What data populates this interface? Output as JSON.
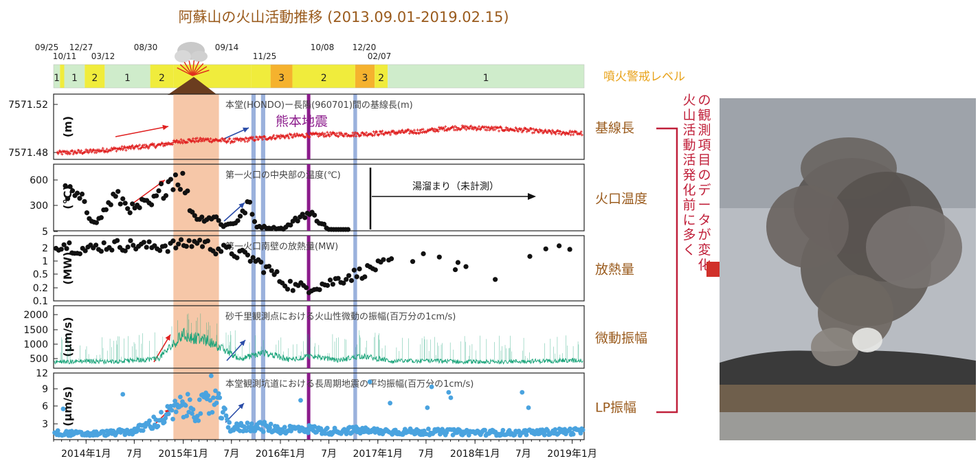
{
  "title": "阿蘇山の火山活動推移 (2013.09.01-2019.02.15)",
  "colors": {
    "title": "#9a5b1d",
    "label_brown": "#9a5b1d",
    "alert_label": "#e8a21a",
    "baseline": "#e02020",
    "tremor": "#1aa47a",
    "lp": "#4aa3df",
    "kumamoto": "#8b1a8b",
    "highlight_orange": "#f6c4a3",
    "highlight_blue": "#8fa8d8",
    "arrow_red": "#e02020",
    "arrow_blue": "#2a4ca8",
    "right_text": "#c0203a",
    "level1": "#cfeccb",
    "level2": "#f0ec3c",
    "level3": "#f5b22e"
  },
  "alert": {
    "label": "噴火警戒レベル",
    "dates": [
      "09/25",
      "10/11",
      "12/27",
      "03/12",
      "08/30",
      "09/14",
      "11/25",
      "10/08",
      "12/20",
      "02/07"
    ],
    "segments": [
      {
        "level": "1",
        "start": "2013-09-01",
        "end": "2013-09-25"
      },
      {
        "level": "",
        "start": "2013-09-25",
        "end": "2013-10-11"
      },
      {
        "level": "1",
        "start": "2013-10-11",
        "end": "2013-12-27"
      },
      {
        "level": "2",
        "start": "2013-12-27",
        "end": "2014-03-12"
      },
      {
        "level": "1",
        "start": "2014-03-12",
        "end": "2014-08-30"
      },
      {
        "level": "2",
        "start": "2014-08-30",
        "end": "2014-11-25"
      },
      {
        "level": "",
        "start": "2014-11-25",
        "end": "2015-09-14"
      },
      {
        "level": "",
        "start": "2015-09-14",
        "end": "2015-11-25"
      },
      {
        "level": "3",
        "start": "2015-11-25",
        "end": "2016-02-15"
      },
      {
        "level": "2",
        "start": "2016-02-15",
        "end": "2016-10-08"
      },
      {
        "level": "3",
        "start": "2016-10-08",
        "end": "2016-12-20"
      },
      {
        "level": "2",
        "start": "2016-12-20",
        "end": "2017-02-07"
      },
      {
        "level": "1",
        "start": "2017-02-07",
        "end": "2019-02-15"
      }
    ]
  },
  "panels": [
    {
      "id": "baseline",
      "name": "基線長",
      "ylabel": "(m)",
      "ticks": [
        "7571.52",
        "7571.48"
      ],
      "title": "本堂(HONDO)ー長陽(960701)間の基線長(m)"
    },
    {
      "id": "temp",
      "name": "火口温度",
      "ylabel": "(°C)",
      "ticks": [
        "600",
        "300",
        "5"
      ],
      "title": "第一火口の中央部の温度(℃)"
    },
    {
      "id": "heat",
      "name": "放熱量",
      "ylabel": "(MW)",
      "ticks": [
        "2",
        "1",
        "0.5",
        "0.2",
        "0.1"
      ],
      "title": "第一火口南壁の放熱量(MW)"
    },
    {
      "id": "tremor",
      "name": "微動振幅",
      "ylabel": "(μm/s)",
      "ticks": [
        "2000",
        "1500",
        "1000",
        "500"
      ],
      "title": "砂千里観測点における火山性微動の振幅(百万分の1cm/s)"
    },
    {
      "id": "lp",
      "name": "LP振幅",
      "ylabel": "(μm/s)",
      "ticks": [
        "12",
        "9",
        "6",
        "3"
      ],
      "title": "本堂観測坑道における長周期地震の平均振幅(百万分の1cm/s)"
    }
  ],
  "kumamoto_label": "熊本地震",
  "yudamari_label": "湯溜まり（未計測）",
  "x_ticks": [
    "2014年1月",
    "7月",
    "2015年1月",
    "7月",
    "2016年1月",
    "7月",
    "2017年1月",
    "7月",
    "2018年1月",
    "7月",
    "2019年1月"
  ],
  "right_text": "火山活動活発化前に多くの観測項目のデータが変化",
  "chart_data": {
    "type": "scatter",
    "title": "阿蘇山の火山活動推移 (2013.09.01-2019.02.15)",
    "x_range": [
      "2013-09-01",
      "2019-02-15"
    ],
    "events": [
      {
        "label": "熊本地震",
        "date": "2016-04-16"
      }
    ],
    "highlight_periods": [
      {
        "start": "2014-11-25",
        "end": "2015-05-15",
        "kind": "eruption"
      },
      {
        "start": "2015-09-14",
        "end": "2015-09-30"
      },
      {
        "start": "2015-10-20",
        "end": "2015-11-05"
      },
      {
        "start": "2016-10-01",
        "end": "2016-10-15"
      }
    ],
    "series": [
      {
        "name": "本堂(HONDO)ー長陽(960701)間の基線長(m)",
        "ylim": [
          7571.47,
          7571.53
        ],
        "points": [
          [
            "2013-10-01",
            7571.476
          ],
          [
            "2014-01-01",
            7571.477
          ],
          [
            "2014-04-01",
            7571.479
          ],
          [
            "2014-07-01",
            7571.481
          ],
          [
            "2014-10-01",
            7571.483
          ],
          [
            "2015-01-01",
            7571.487
          ],
          [
            "2015-04-01",
            7571.488
          ],
          [
            "2015-07-01",
            7571.487
          ],
          [
            "2015-10-01",
            7571.489
          ],
          [
            "2016-01-01",
            7571.491
          ],
          [
            "2016-04-01",
            7571.492
          ],
          [
            "2016-07-01",
            7571.493
          ],
          [
            "2016-10-01",
            7571.493
          ],
          [
            "2017-01-01",
            7571.494
          ],
          [
            "2017-04-01",
            7571.495
          ],
          [
            "2017-07-01",
            7571.496
          ],
          [
            "2017-10-01",
            7571.499
          ],
          [
            "2018-01-01",
            7571.499
          ],
          [
            "2018-04-01",
            7571.498
          ],
          [
            "2018-07-01",
            7571.497
          ],
          [
            "2018-10-01",
            7571.495
          ],
          [
            "2019-02-01",
            7571.494
          ]
        ]
      },
      {
        "name": "第一火口の中央部の温度(℃)",
        "ylim": [
          5,
          750
        ],
        "points": [
          [
            "2013-11-01",
            420
          ],
          [
            "2013-12-15",
            350
          ],
          [
            "2014-01-15",
            150
          ],
          [
            "2014-02-15",
            110
          ],
          [
            "2014-03-15",
            250
          ],
          [
            "2014-04-15",
            380
          ],
          [
            "2014-05-15",
            350
          ],
          [
            "2014-07-01",
            230
          ],
          [
            "2014-08-01",
            300
          ],
          [
            "2014-09-01",
            280
          ],
          [
            "2014-10-01",
            400
          ],
          [
            "2014-11-01",
            550
          ],
          [
            "2014-12-01",
            620
          ],
          [
            "2015-01-01",
            560
          ],
          [
            "2015-02-01",
            220
          ],
          [
            "2015-03-01",
            140
          ],
          [
            "2015-05-01",
            160
          ],
          [
            "2015-06-01",
            60
          ],
          [
            "2015-07-15",
            100
          ],
          [
            "2015-08-15",
            200
          ],
          [
            "2015-09-01",
            330
          ],
          [
            "2015-10-01",
            60
          ],
          [
            "2015-11-15",
            40
          ],
          [
            "2016-01-15",
            30
          ],
          [
            "2016-04-01",
            200
          ],
          [
            "2016-05-01",
            180
          ],
          [
            "2016-07-01",
            20
          ],
          [
            "2016-09-01",
            10
          ]
        ]
      },
      {
        "name": "第一火口南壁の放熱量(MW)",
        "ylim": [
          0.1,
          3
        ],
        "log": true,
        "points": [
          [
            "2013-09-15",
            2.0
          ],
          [
            "2013-11-01",
            1.8
          ],
          [
            "2014-01-01",
            1.4
          ],
          [
            "2014-03-01",
            1.8
          ],
          [
            "2014-06-01",
            1.9
          ],
          [
            "2014-09-01",
            1.7
          ],
          [
            "2014-11-01",
            1.8
          ],
          [
            "2015-01-01",
            1.9
          ],
          [
            "2015-03-01",
            2.2
          ],
          [
            "2015-05-01",
            1.6
          ],
          [
            "2015-07-01",
            1.3
          ],
          [
            "2015-09-01",
            1.0
          ],
          [
            "2015-11-01",
            0.6
          ],
          [
            "2016-01-01",
            0.3
          ],
          [
            "2016-03-01",
            0.2
          ],
          [
            "2016-05-01",
            0.22
          ],
          [
            "2016-07-01",
            0.25
          ],
          [
            "2016-09-01",
            0.35
          ],
          [
            "2016-11-01",
            0.45
          ],
          [
            "2017-02-01",
            0.7
          ],
          [
            "2017-05-01",
            1.0
          ],
          [
            "2017-08-01",
            0.9
          ],
          [
            "2018-01-01",
            0.35
          ],
          [
            "2018-06-01",
            0.4
          ],
          [
            "2018-10-01",
            1.6
          ],
          [
            "2019-01-01",
            1.3
          ]
        ]
      },
      {
        "name": "砂千里観測点における火山性微動の振幅(百万分の1cm/s)",
        "ylim": [
          200,
          2300
        ],
        "points": [
          [
            "2013-10-01",
            400
          ],
          [
            "2014-01-01",
            430
          ],
          [
            "2014-04-01",
            410
          ],
          [
            "2014-07-01",
            450
          ],
          [
            "2014-10-01",
            520
          ],
          [
            "2015-01-01",
            1300
          ],
          [
            "2015-02-01",
            1200
          ],
          [
            "2015-04-01",
            1100
          ],
          [
            "2015-06-01",
            800
          ],
          [
            "2015-08-01",
            500
          ],
          [
            "2015-11-01",
            700
          ],
          [
            "2016-02-01",
            480
          ],
          [
            "2016-05-01",
            600
          ],
          [
            "2016-08-01",
            450
          ],
          [
            "2016-11-01",
            600
          ],
          [
            "2017-03-01",
            420
          ],
          [
            "2017-07-01",
            440
          ],
          [
            "2018-01-01",
            400
          ],
          [
            "2018-07-01",
            420
          ],
          [
            "2019-01-01",
            450
          ]
        ]
      },
      {
        "name": "本堂観測坑道における長周期地震の平均振幅(百万分の1cm/s)",
        "ylim": [
          0,
          12
        ],
        "points": [
          [
            "2013-10-01",
            1.2
          ],
          [
            "2014-01-01",
            1.0
          ],
          [
            "2014-04-01",
            1.2
          ],
          [
            "2014-07-01",
            1.5
          ],
          [
            "2014-10-01",
            3.5
          ],
          [
            "2015-01-01",
            6.0
          ],
          [
            "2015-03-01",
            5.5
          ],
          [
            "2015-05-01",
            7.0
          ],
          [
            "2015-07-01",
            2.0
          ],
          [
            "2015-10-01",
            2.5
          ],
          [
            "2016-01-01",
            1.8
          ],
          [
            "2016-04-01",
            2.0
          ],
          [
            "2016-07-01",
            1.5
          ],
          [
            "2016-10-01",
            1.7
          ],
          [
            "2017-01-01",
            1.5
          ],
          [
            "2017-06-01",
            1.4
          ],
          [
            "2018-01-01",
            1.3
          ],
          [
            "2018-06-01",
            1.2
          ],
          [
            "2019-01-01",
            1.5
          ]
        ]
      }
    ]
  }
}
